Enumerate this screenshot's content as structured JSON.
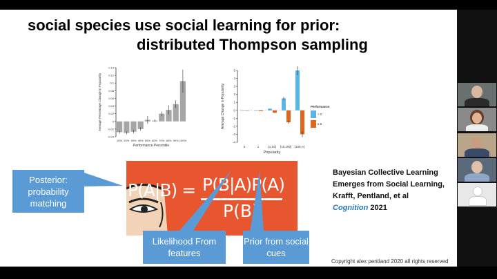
{
  "slide": {
    "title_line1": "social species use social learning for prior:",
    "title_line2": "distributed Thompson sampling",
    "formula_text": "P(A|B) = P(B|A)P(A)",
    "formula_denominator": "P(B)",
    "callouts": {
      "posterior": "Posterior: probability matching",
      "likelihood": "Likelihood From features",
      "prior": "Prior from social cues"
    },
    "reference": {
      "line1": "Bayesian Collective Learning",
      "line2": "Emerges from Social Learning,",
      "line3": "Krafft, Pentland, et al",
      "journal": "Cognition",
      "year": "2021"
    },
    "copyright": "Copyright alex pentland 2020 all rights reserved"
  },
  "chart_data": [
    {
      "type": "bar",
      "categories": [
        "10%",
        "20%",
        "30%",
        "40%",
        "50%",
        "60%",
        "70%",
        "80%",
        "90%",
        "100%"
      ],
      "values": [
        -0.028,
        -0.03,
        -0.027,
        -0.02,
        0.004,
        0.002,
        0.02,
        0.03,
        0.045,
        0.105
      ],
      "errors": [
        0.004,
        0.004,
        0.004,
        0.004,
        0.01,
        0.003,
        0.006,
        0.012,
        0.01,
        0.03
      ],
      "ylim": [
        -0.04,
        0.14
      ],
      "yticks": [
        "-0.04",
        "-0.02",
        "0",
        "0.02",
        "0.04",
        "0.06",
        "0.08",
        "0.1",
        "0.12",
        "0.14"
      ],
      "xlabel": "Performance Percentile",
      "ylabel": "Average Percentage Change in Popularity",
      "color": "#a6a6a6"
    },
    {
      "type": "bar",
      "categories": [
        "0",
        "1",
        "(1,10]",
        "(10,100]",
        "(100,∞)"
      ],
      "series": [
        {
          "name": "> 0",
          "values": [
            0,
            0,
            0.2,
            1.5,
            5.0
          ],
          "color": "#5ab4e5"
        },
        {
          "name": "≤ 0",
          "values": [
            0,
            -0.1,
            -0.3,
            -1.5,
            -3.0
          ],
          "color": "#e0661b"
        }
      ],
      "ylim": [
        -4,
        5
      ],
      "yticks": [
        "-4",
        "-3",
        "-2",
        "-1",
        "0",
        "1",
        "2",
        "3",
        "4",
        "5"
      ],
      "xlabel": "Popularity",
      "ylabel": "Average Change in Popularity",
      "legend_title": "Performance",
      "legend_position": "right"
    }
  ]
}
